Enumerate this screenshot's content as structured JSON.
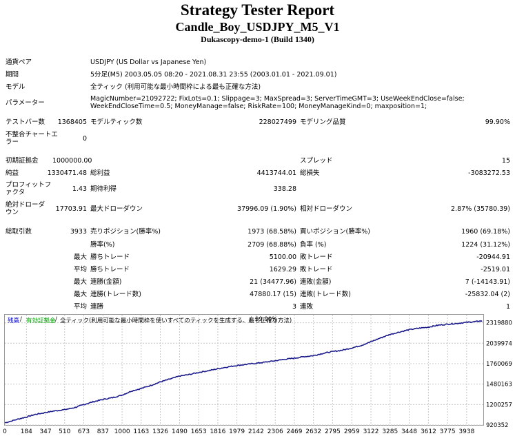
{
  "report": {
    "title": "Strategy Tester Report",
    "expert": "Candle_Boy_USDJPY_M5_V1",
    "server": "Dukascopy-demo-1 (Build 1340)"
  },
  "info": {
    "symbol_label": "通貨ペア",
    "symbol": "USDJPY (US Dollar vs Japanese Yen)",
    "period_label": "期間",
    "period": "5分足(M5) 2003.05.05 08:20 - 2021.08.31 23:55 (2003.01.01 - 2021.09.01)",
    "model_label": "モデル",
    "model": "全ティック (利用可能な最小時間枠による最も正確な方法)",
    "params_label": "パラメーター",
    "params": "MagicNumber=21092722; FixLots=0.1; Slippage=3; MaxSpread=3; ServerTimeGMT=3; UseWeekEndClose=false; WeekEndCloseTime=0.5; MoneyManage=false; RiskRate=100; MoneyManageKind=0; maxposition=1;"
  },
  "stats": {
    "bars_label": "テストバー数",
    "bars": "1368405",
    "ticks_label": "モデルティック数",
    "ticks": "228027499",
    "quality_label": "モデリング品質",
    "quality": "99.90%",
    "mismatch_label": "不整合チャートエラー",
    "mismatch": "0",
    "deposit_label": "初期証拠金",
    "deposit": "1000000.00",
    "spread_label": "スプレッド",
    "spread": "15",
    "net_label": "純益",
    "net": "1330471.48",
    "gross_profit_label": "総利益",
    "gross_profit": "4413744.01",
    "gross_loss_label": "総損失",
    "gross_loss": "-3083272.53",
    "pf_label": "プロフィットファクタ",
    "pf": "1.43",
    "expected_label": "期待利得",
    "expected": "338.28",
    "abs_dd_label": "絶対ドローダウン",
    "abs_dd": "17703.91",
    "max_dd_label": "最大ドローダウン",
    "max_dd": "37996.09 (1.90%)",
    "rel_dd_label": "相対ドローダウン",
    "rel_dd": "2.87% (35780.39)",
    "trades_label": "総取引数",
    "trades": "3933",
    "short_label": "売りポジション(勝率%)",
    "short": "1973 (68.58%)",
    "long_label": "買いポジション(勝率%)",
    "long": "1960 (69.18%)",
    "win_label": "勝率(%)",
    "win": "2709 (68.88%)",
    "loss_label": "負率 (%)",
    "loss": "1224 (31.12%)",
    "max_word": "最大",
    "avg_word": "平均",
    "largest_win_label": "勝ちトレード",
    "largest_win": "5100.00",
    "largest_loss_label": "敗トレード",
    "largest_loss": "-20944.91",
    "avg_win_label": "勝ちトレード",
    "avg_win": "1629.29",
    "avg_loss_label": "敗トレード",
    "avg_loss": "-2519.01",
    "cons_wins_label": "連勝(金額)",
    "cons_wins": "21 (34477.96)",
    "cons_losses_label": "連敗(金額)",
    "cons_losses": "7 (-14143.91)",
    "cons_profit_label": "連勝(トレード数)",
    "cons_profit": "47880.17 (15)",
    "cons_loss_label": "連敗(トレード数)",
    "cons_loss": "-25832.04 (2)",
    "avg_cons_wins_label": "連勝",
    "avg_cons_wins": "3",
    "avg_cons_losses_label": "連敗",
    "avg_cons_losses": "1"
  },
  "chart_legend": {
    "balance": "残高",
    "sep": " / ",
    "margin": "有効証拠金",
    "desc": "全ティック(利用可能な最小時間枠を使いすべてのティックを生成する、最も正確な方法)",
    "quality": "99.90%"
  },
  "colors": {
    "line": "#1a1a8c",
    "balance": "#0000cc",
    "margin": "#00a000",
    "grid": "#c8c8c8"
  },
  "chart_data": {
    "type": "line",
    "xticks": [
      0,
      184,
      347,
      510,
      673,
      837,
      1000,
      1163,
      1326,
      1490,
      1653,
      1816,
      1979,
      2142,
      2306,
      2469,
      2632,
      2795,
      2959,
      3122,
      3285,
      3448,
      3612,
      3775,
      3938
    ],
    "yticks": [
      920352,
      1200257,
      1480163,
      1760069,
      2039974,
      2319880
    ],
    "xlim": [
      0,
      4080
    ],
    "ylim": [
      920352,
      2429000
    ],
    "x": [
      0,
      100,
      184,
      260,
      347,
      430,
      510,
      600,
      673,
      760,
      837,
      920,
      1000,
      1080,
      1163,
      1250,
      1326,
      1400,
      1490,
      1570,
      1653,
      1740,
      1816,
      1900,
      1979,
      2060,
      2142,
      2220,
      2306,
      2390,
      2469,
      2550,
      2632,
      2710,
      2795,
      2880,
      2959,
      3040,
      3122,
      3200,
      3285,
      3370,
      3448,
      3530,
      3612,
      3690,
      3775,
      3850,
      3938,
      4010,
      4070
    ],
    "y": [
      950000,
      995000,
      1030000,
      1065000,
      1090000,
      1115000,
      1130000,
      1160000,
      1200000,
      1240000,
      1270000,
      1295000,
      1330000,
      1385000,
      1420000,
      1465000,
      1510000,
      1545000,
      1590000,
      1610000,
      1640000,
      1665000,
      1690000,
      1715000,
      1735000,
      1750000,
      1765000,
      1780000,
      1800000,
      1820000,
      1835000,
      1855000,
      1870000,
      1900000,
      1925000,
      1945000,
      1975000,
      2010000,
      2060000,
      2110000,
      2160000,
      2195000,
      2225000,
      2245000,
      2260000,
      2285000,
      2300000,
      2310000,
      2325000,
      2335000,
      2345000
    ]
  }
}
